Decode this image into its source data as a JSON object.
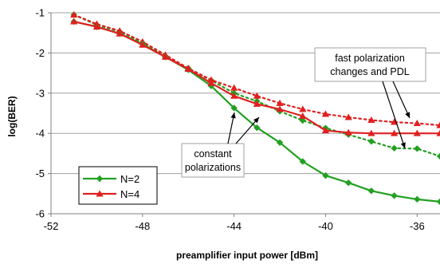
{
  "chart_data": {
    "type": "line",
    "title": "",
    "xlabel": "preamplifier input power [dBm]",
    "ylabel": "log(BER)",
    "xlim": [
      -52,
      -35
    ],
    "ylim": [
      -6,
      -1
    ],
    "xticks": [
      -52,
      -48,
      -44,
      -40,
      -36
    ],
    "yticks": [
      -1,
      -2,
      -3,
      -4,
      -5,
      -6
    ],
    "x_tick_labels": [
      "-52",
      "-48",
      "-44",
      "-40",
      "-36"
    ],
    "y_tick_labels": [
      "-1",
      "-2",
      "-3",
      "-4",
      "-5",
      "-6"
    ],
    "grid": "horizontal",
    "legend_position": "bottom-left",
    "series": [
      {
        "name": "N=2",
        "condition": "constant polarizations",
        "color": "#22a022",
        "marker": "diamond",
        "line_style": "solid",
        "x": [
          -51,
          -50,
          -49,
          -48,
          -47,
          -46,
          -45,
          -44,
          -43,
          -42,
          -41,
          -40,
          -39,
          -38,
          -37,
          -36,
          -35
        ],
        "y": [
          -1.22,
          -1.35,
          -1.52,
          -1.78,
          -2.1,
          -2.42,
          -2.82,
          -3.37,
          -3.86,
          -4.23,
          -4.7,
          -5.05,
          -5.23,
          -5.43,
          -5.55,
          -5.64,
          -5.7
        ]
      },
      {
        "name": "N=4",
        "condition": "constant polarizations",
        "color": "#e02020",
        "marker": "triangle",
        "line_style": "solid",
        "x": [
          -51,
          -50,
          -49,
          -48,
          -47,
          -46,
          -45,
          -44,
          -43,
          -42,
          -41,
          -40,
          -39,
          -38,
          -37,
          -36,
          -35
        ],
        "y": [
          -1.22,
          -1.35,
          -1.52,
          -1.8,
          -2.1,
          -2.4,
          -2.75,
          -3.07,
          -3.27,
          -3.4,
          -3.57,
          -3.93,
          -3.98,
          -4.0,
          -4.0,
          -4.0,
          -4.0
        ]
      },
      {
        "name": "N=2",
        "condition": "fast polarization changes and PDL",
        "color": "#22a022",
        "marker": "diamond",
        "line_style": "dotted",
        "x": [
          -51,
          -50,
          -49,
          -48,
          -47,
          -46,
          -45,
          -44,
          -43,
          -42,
          -41,
          -40,
          -39,
          -38,
          -37,
          -36,
          -35
        ],
        "y": [
          -1.05,
          -1.3,
          -1.47,
          -1.75,
          -2.08,
          -2.38,
          -2.68,
          -3.0,
          -3.2,
          -3.45,
          -3.68,
          -3.87,
          -4.03,
          -4.2,
          -4.37,
          -4.38,
          -4.57
        ]
      },
      {
        "name": "N=4",
        "condition": "fast polarization changes and PDL",
        "color": "#e02020",
        "marker": "triangle",
        "line_style": "dotted",
        "x": [
          -51,
          -50,
          -49,
          -48,
          -47,
          -46,
          -45,
          -44,
          -43,
          -42,
          -41,
          -40,
          -39,
          -38,
          -37,
          -36,
          -35
        ],
        "y": [
          -1.05,
          -1.28,
          -1.45,
          -1.72,
          -2.05,
          -2.38,
          -2.67,
          -2.87,
          -3.07,
          -3.25,
          -3.4,
          -3.52,
          -3.6,
          -3.67,
          -3.72,
          -3.75,
          -3.8
        ]
      }
    ],
    "annotations": [
      {
        "lines": [
          "fast polarization",
          "changes and PDL"
        ]
      },
      {
        "lines": [
          "constant",
          "polarizations"
        ]
      }
    ],
    "legend": [
      {
        "label": "N=2",
        "color": "#22a022",
        "marker": "diamond"
      },
      {
        "label": "N=4",
        "color": "#e02020",
        "marker": "triangle"
      }
    ]
  }
}
